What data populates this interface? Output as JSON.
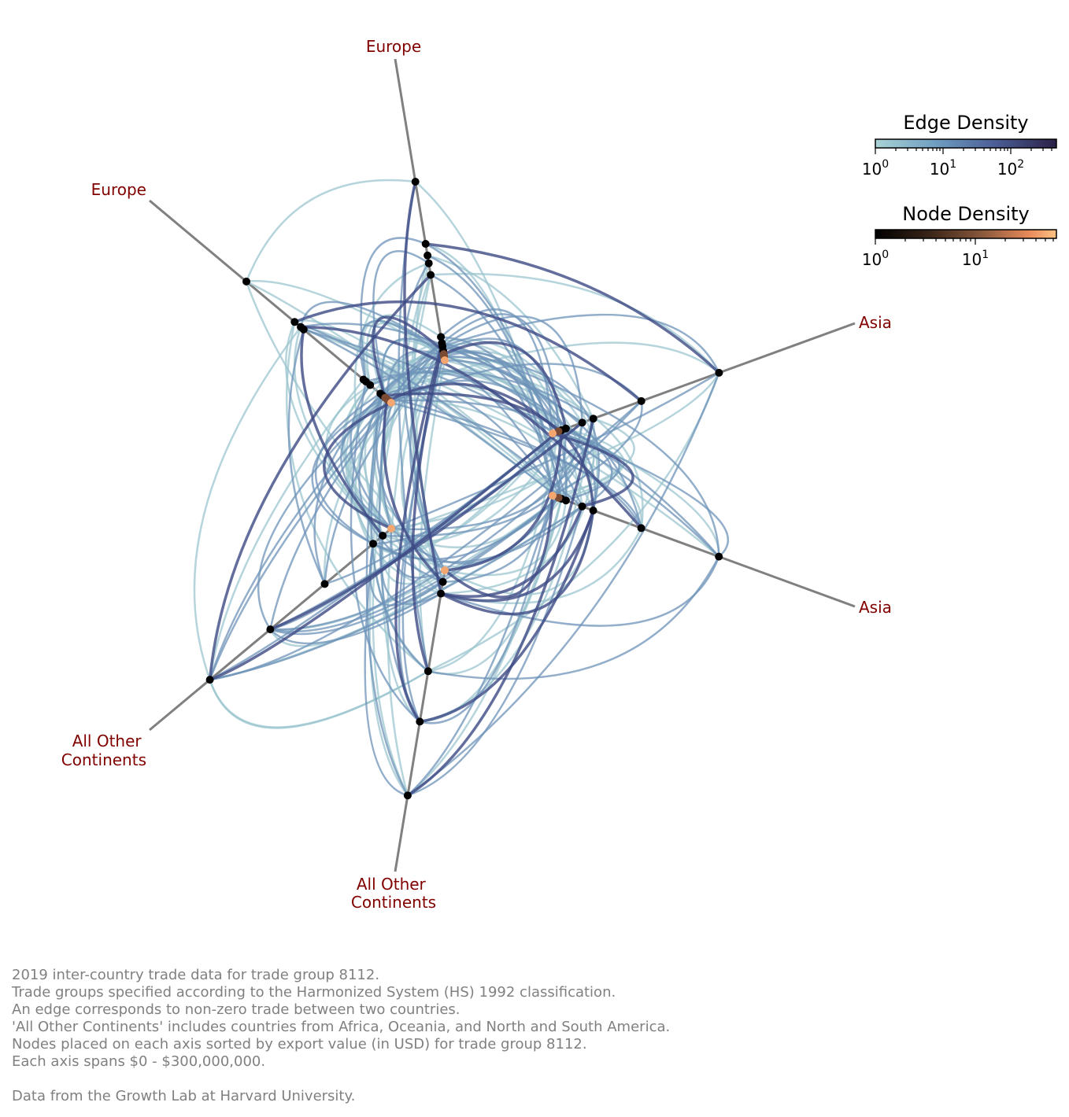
{
  "axis_labels": [
    {
      "id": "europe-1",
      "lines": [
        "Europe"
      ]
    },
    {
      "id": "europe-2",
      "lines": [
        "Europe"
      ]
    },
    {
      "id": "asia-1",
      "lines": [
        "Asia"
      ]
    },
    {
      "id": "asia-2",
      "lines": [
        "Asia"
      ]
    },
    {
      "id": "other-1",
      "lines": [
        "All Other",
        "Continents"
      ]
    },
    {
      "id": "other-2",
      "lines": [
        "All Other",
        "Continents"
      ]
    }
  ],
  "edge_colorbar": {
    "title": "Edge Density",
    "scale": "log",
    "ticks": [
      {
        "base": "10",
        "exp": "0"
      },
      {
        "base": "10",
        "exp": "1"
      },
      {
        "base": "10",
        "exp": "2"
      }
    ],
    "colors": [
      "#a9d3d6",
      "#6f9ec1",
      "#4a5e96",
      "#2c2147"
    ]
  },
  "node_colorbar": {
    "title": "Node Density",
    "scale": "log",
    "ticks": [
      {
        "base": "10",
        "exp": "0"
      },
      {
        "base": "10",
        "exp": "1"
      }
    ],
    "colors": [
      "#000000",
      "#3a2418",
      "#8c5a3c",
      "#e88a5a",
      "#ffc283"
    ]
  },
  "caption_lines": [
    "2019 inter-country trade data for trade group 8112.",
    "Trade groups specified according to the Harmonized System (HS) 1992 classification.",
    "An edge corresponds to non-zero trade between two countries.",
    "'All Other Continents' includes countries from Africa, Oceania, and North and South America.",
    "Nodes placed on each axis sorted by export value (in USD) for trade group 8112.",
    "Each axis spans $0 - $300,000,000.",
    "",
    "Data from the Growth Lab at Harvard University."
  ],
  "colors": {
    "axis": "#808080",
    "label": "#800000",
    "edge_light": "#9cc6cf",
    "edge_mid": "#6d93b8",
    "edge_dark": "#3d4a84",
    "node_dark": "#000000",
    "node_mid": "#7a4a33",
    "node_light": "#f3a66f"
  }
}
